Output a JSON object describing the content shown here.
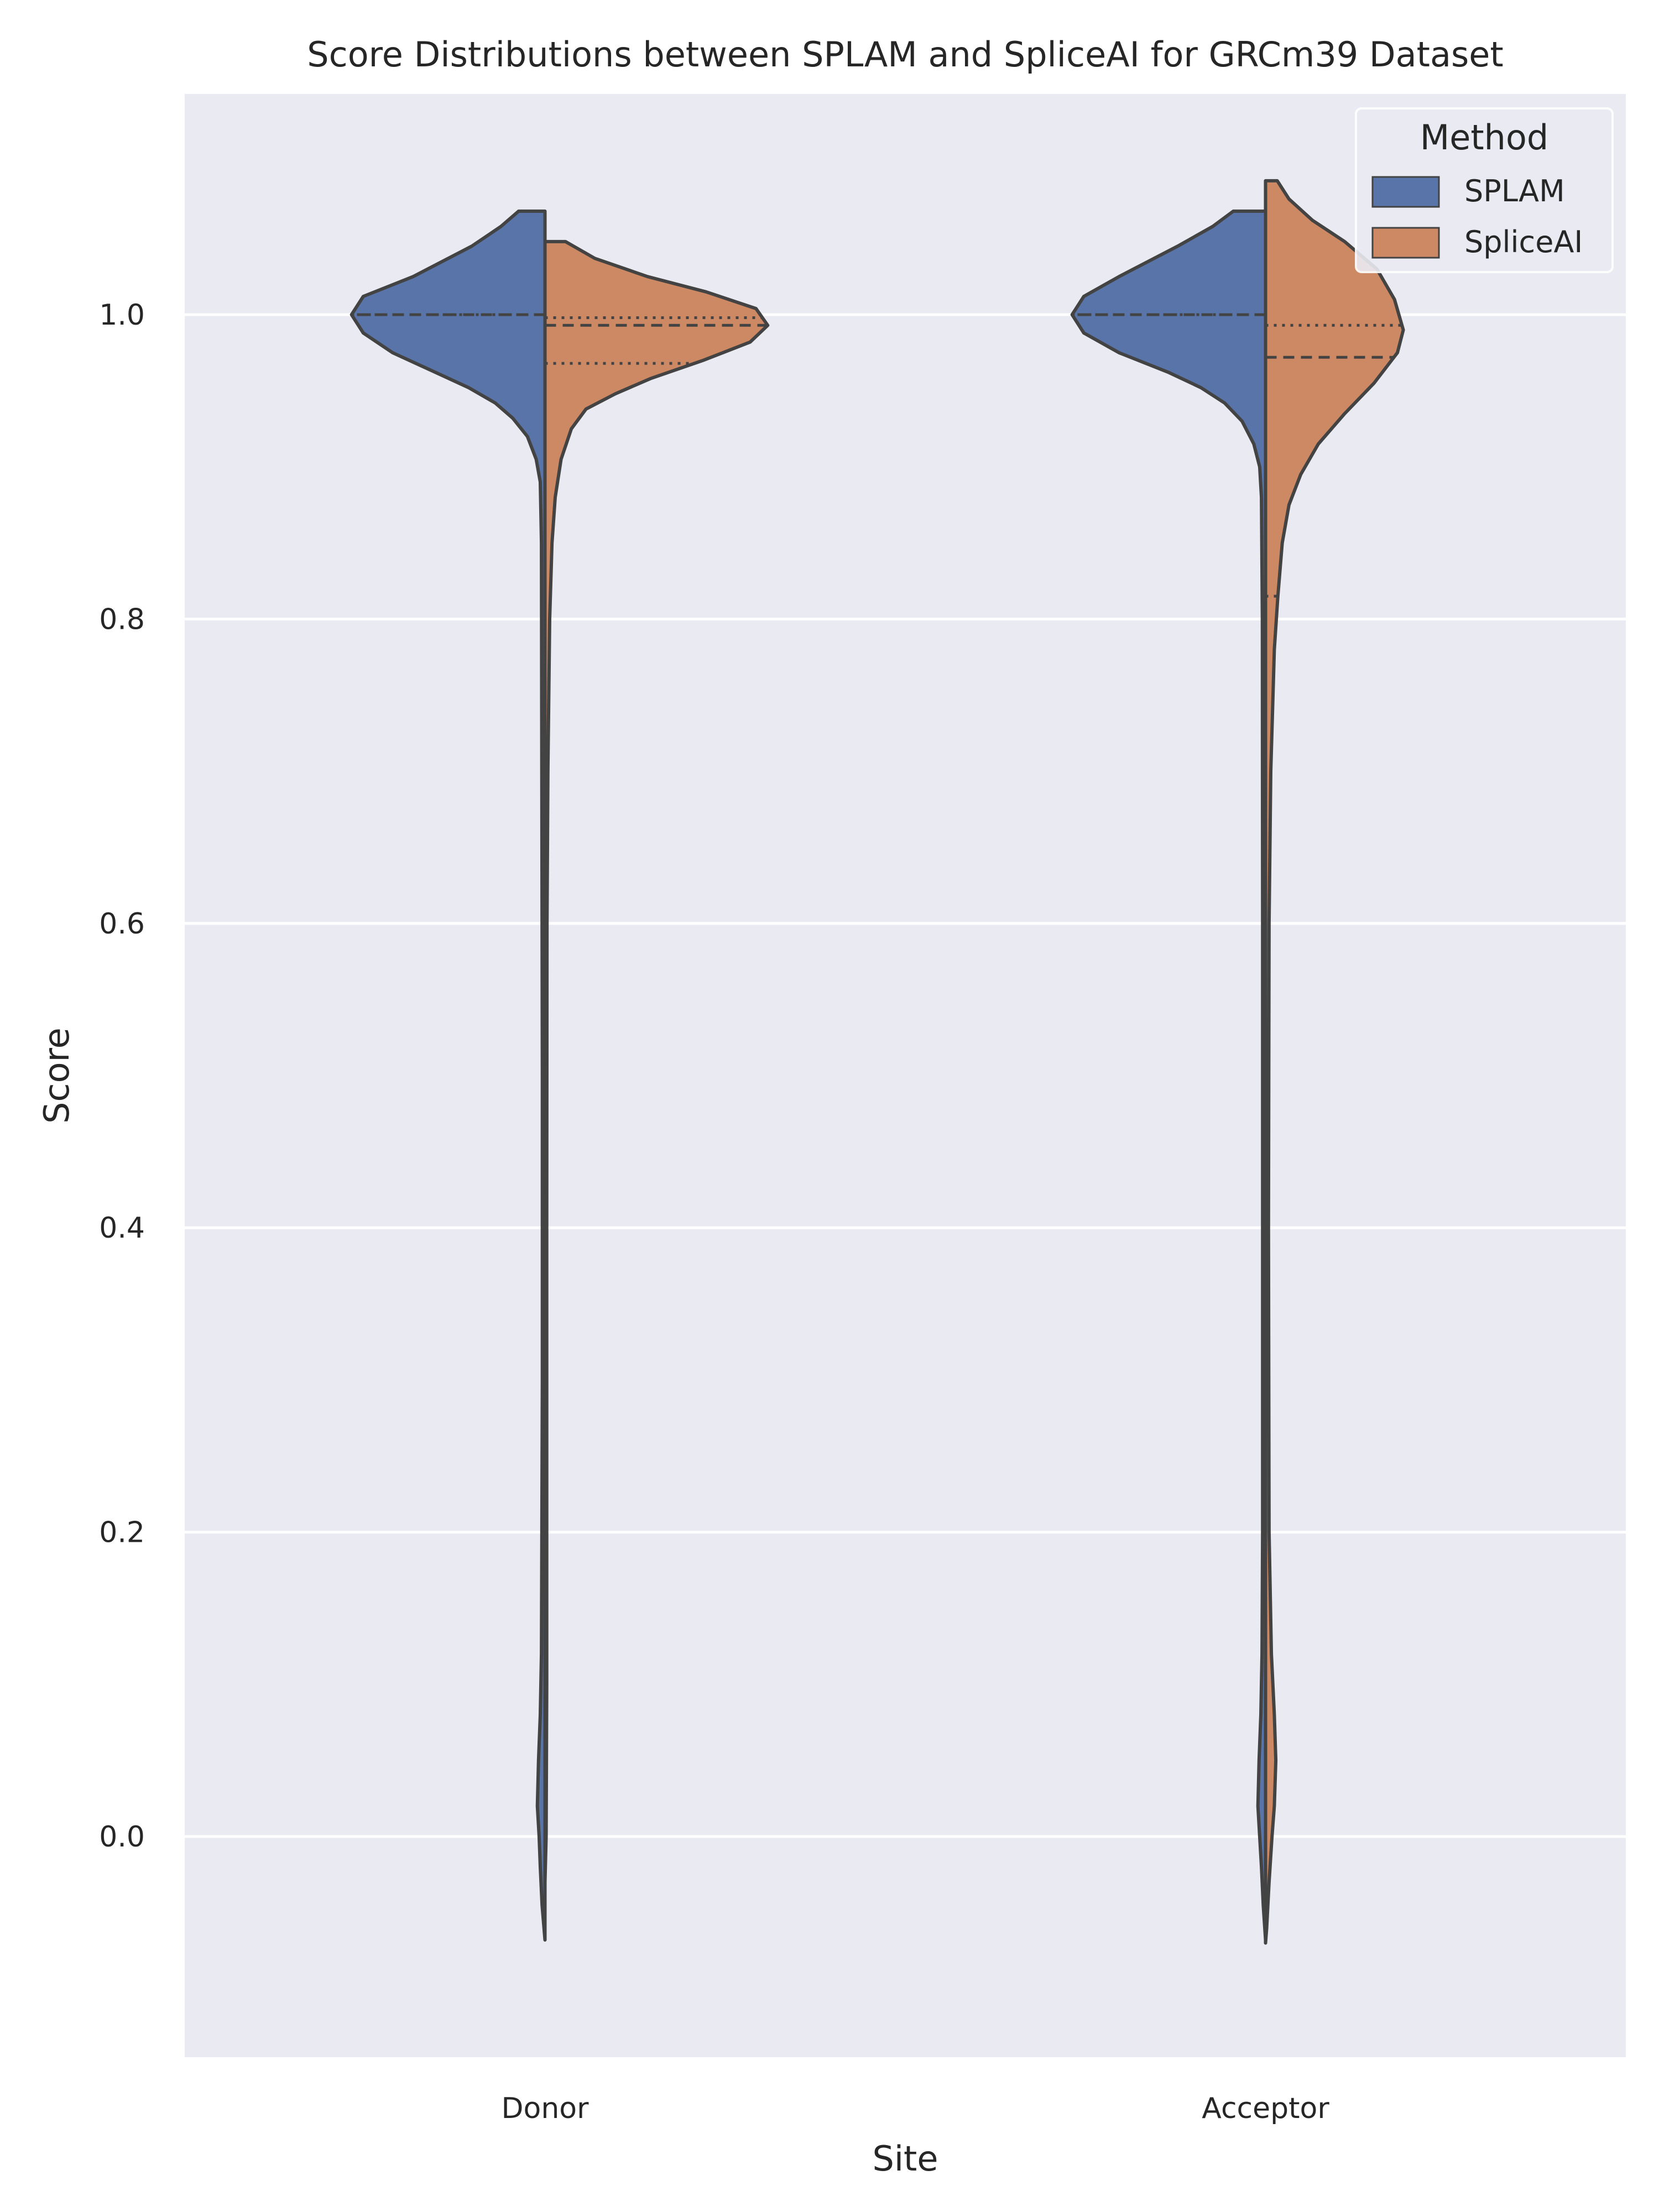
{
  "chart_data": {
    "type": "violin",
    "split": true,
    "title": "Score Distributions between SPLAM and SpliceAI for GRCm39 Dataset",
    "xlabel": "Site",
    "ylabel": "Score",
    "ylim": [
      -0.145,
      1.145
    ],
    "yticks": [
      {
        "value": 0.0,
        "label": "0.0"
      },
      {
        "value": 0.2,
        "label": "0.2"
      },
      {
        "value": 0.4,
        "label": "0.4"
      },
      {
        "value": 0.6,
        "label": "0.6"
      },
      {
        "value": 0.8,
        "label": "0.8"
      },
      {
        "value": 1.0,
        "label": "1.0"
      }
    ],
    "categories": [
      "Donor",
      "Acceptor"
    ],
    "grid": true,
    "background": "#eaeaf2",
    "legend": {
      "title": "Method",
      "position": "top-right"
    },
    "series": [
      {
        "name": "SPLAM",
        "color": "#5874a8",
        "side": "left",
        "violins": [
          {
            "category": "Donor",
            "density": [
              [
                1.068,
                0.0
              ],
              [
                1.068,
                0.09
              ],
              [
                1.058,
                0.15
              ],
              [
                1.045,
                0.25
              ],
              [
                1.025,
                0.45
              ],
              [
                1.012,
                0.62
              ],
              [
                1.0,
                0.66
              ],
              [
                0.988,
                0.62
              ],
              [
                0.975,
                0.52
              ],
              [
                0.96,
                0.35
              ],
              [
                0.952,
                0.26
              ],
              [
                0.942,
                0.17
              ],
              [
                0.932,
                0.11
              ],
              [
                0.92,
                0.06
              ],
              [
                0.905,
                0.03
              ],
              [
                0.89,
                0.016
              ],
              [
                0.85,
                0.012
              ],
              [
                0.7,
                0.011
              ],
              [
                0.5,
                0.009
              ],
              [
                0.3,
                0.009
              ],
              [
                0.12,
                0.012
              ],
              [
                0.08,
                0.016
              ],
              [
                0.05,
                0.022
              ],
              [
                0.02,
                0.026
              ],
              [
                0.0,
                0.02
              ],
              [
                -0.02,
                0.016
              ],
              [
                -0.045,
                0.01
              ],
              [
                -0.068,
                0.0
              ]
            ],
            "quartiles": {
              "q1": 1.0,
              "median": 1.0,
              "q3": 1.0
            }
          },
          {
            "category": "Acceptor",
            "density": [
              [
                1.068,
                0.0
              ],
              [
                1.068,
                0.11
              ],
              [
                1.058,
                0.18
              ],
              [
                1.045,
                0.3
              ],
              [
                1.025,
                0.5
              ],
              [
                1.012,
                0.62
              ],
              [
                1.0,
                0.66
              ],
              [
                0.988,
                0.62
              ],
              [
                0.975,
                0.5
              ],
              [
                0.962,
                0.33
              ],
              [
                0.952,
                0.22
              ],
              [
                0.942,
                0.14
              ],
              [
                0.93,
                0.08
              ],
              [
                0.915,
                0.04
              ],
              [
                0.9,
                0.02
              ],
              [
                0.88,
                0.014
              ],
              [
                0.8,
                0.011
              ],
              [
                0.6,
                0.01
              ],
              [
                0.4,
                0.01
              ],
              [
                0.2,
                0.01
              ],
              [
                0.12,
                0.012
              ],
              [
                0.08,
                0.016
              ],
              [
                0.05,
                0.022
              ],
              [
                0.02,
                0.026
              ],
              [
                0.0,
                0.02
              ],
              [
                -0.02,
                0.014
              ],
              [
                -0.045,
                0.008
              ],
              [
                -0.068,
                0.0
              ]
            ],
            "quartiles": {
              "q1": 1.0,
              "median": 1.0,
              "q3": 1.0
            }
          }
        ]
      },
      {
        "name": "SpliceAI",
        "color": "#cc8963",
        "side": "right",
        "violins": [
          {
            "category": "Donor",
            "density": [
              [
                1.048,
                0.0
              ],
              [
                1.048,
                0.07
              ],
              [
                1.037,
                0.17
              ],
              [
                1.025,
                0.35
              ],
              [
                1.015,
                0.55
              ],
              [
                1.004,
                0.72
              ],
              [
                0.993,
                0.76
              ],
              [
                0.982,
                0.7
              ],
              [
                0.97,
                0.54
              ],
              [
                0.958,
                0.36
              ],
              [
                0.948,
                0.24
              ],
              [
                0.938,
                0.14
              ],
              [
                0.925,
                0.09
              ],
              [
                0.905,
                0.055
              ],
              [
                0.88,
                0.035
              ],
              [
                0.85,
                0.024
              ],
              [
                0.8,
                0.016
              ],
              [
                0.7,
                0.01
              ],
              [
                0.6,
                0.007
              ],
              [
                0.4,
                0.006
              ],
              [
                0.2,
                0.006
              ],
              [
                0.1,
                0.006
              ],
              [
                0.0,
                0.004
              ],
              [
                -0.03,
                0.0
              ]
            ],
            "quartiles": {
              "q1": 0.968,
              "median": 0.993,
              "q3": 0.998
            }
          },
          {
            "category": "Acceptor",
            "density": [
              [
                1.088,
                0.0
              ],
              [
                1.088,
                0.04
              ],
              [
                1.076,
                0.08
              ],
              [
                1.062,
                0.16
              ],
              [
                1.048,
                0.27
              ],
              [
                1.03,
                0.38
              ],
              [
                1.01,
                0.44
              ],
              [
                0.99,
                0.47
              ],
              [
                0.975,
                0.45
              ],
              [
                0.955,
                0.37
              ],
              [
                0.935,
                0.27
              ],
              [
                0.915,
                0.18
              ],
              [
                0.895,
                0.12
              ],
              [
                0.875,
                0.08
              ],
              [
                0.85,
                0.057
              ],
              [
                0.815,
                0.042
              ],
              [
                0.78,
                0.03
              ],
              [
                0.7,
                0.018
              ],
              [
                0.6,
                0.012
              ],
              [
                0.4,
                0.01
              ],
              [
                0.2,
                0.012
              ],
              [
                0.12,
                0.02
              ],
              [
                0.08,
                0.03
              ],
              [
                0.05,
                0.035
              ],
              [
                0.02,
                0.03
              ],
              [
                0.0,
                0.022
              ],
              [
                -0.03,
                0.012
              ],
              [
                -0.06,
                0.004
              ],
              [
                -0.07,
                0.0
              ]
            ],
            "quartiles": {
              "q1": 0.815,
              "median": 0.972,
              "q3": 0.993
            }
          }
        ]
      }
    ]
  }
}
